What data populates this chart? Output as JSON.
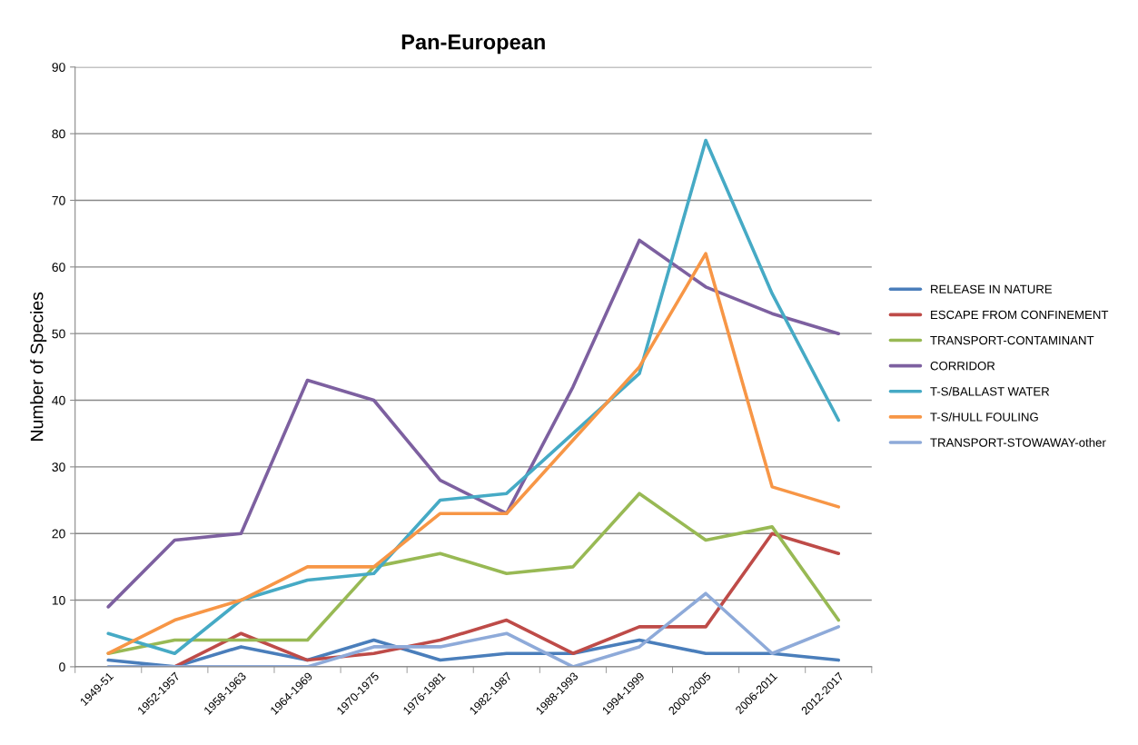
{
  "chart_data": {
    "type": "line",
    "title": "Pan-European",
    "ylabel": "Number of Species",
    "categories": [
      "1949-51",
      "1952-1957",
      "1958-1963",
      "1964-1969",
      "1970-1975",
      "1976-1981",
      "1982-1987",
      "1988-1993",
      "1994-1999",
      "2000-2005",
      "2006-2011",
      "2012-2017"
    ],
    "series": [
      {
        "name": "RELEASE IN NATURE",
        "color": "#4a7ebb",
        "values": [
          1,
          0,
          3,
          1,
          4,
          1,
          2,
          2,
          4,
          2,
          2,
          1
        ]
      },
      {
        "name": "ESCAPE FROM CONFINEMENT",
        "color": "#be4b48",
        "values": [
          null,
          0,
          5,
          1,
          2,
          4,
          7,
          2,
          6,
          6,
          20,
          17
        ]
      },
      {
        "name": "TRANSPORT-CONTAMINANT",
        "color": "#98b954",
        "values": [
          2,
          4,
          4,
          4,
          15,
          17,
          14,
          15,
          26,
          19,
          21,
          7
        ]
      },
      {
        "name": "CORRIDOR",
        "color": "#7d60a0",
        "values": [
          9,
          19,
          20,
          43,
          40,
          28,
          23,
          42,
          64,
          57,
          53,
          50
        ]
      },
      {
        "name": "T-S/BALLAST WATER",
        "color": "#46aac5",
        "values": [
          5,
          2,
          10,
          13,
          14,
          25,
          26,
          35,
          44,
          79,
          56,
          37
        ]
      },
      {
        "name": "T-S/HULL FOULING",
        "color": "#f79646",
        "values": [
          2,
          7,
          10,
          15,
          15,
          23,
          23,
          34,
          45,
          62,
          27,
          24
        ]
      },
      {
        "name": "TRANSPORT-STOWAWAY-other",
        "color": "#8eaad9",
        "values": [
          0,
          0,
          0,
          0,
          3,
          3,
          5,
          0,
          3,
          11,
          2,
          6
        ]
      }
    ],
    "ylim": [
      0,
      90
    ],
    "yticks": [
      0,
      10,
      20,
      30,
      40,
      50,
      60,
      70,
      80,
      90
    ],
    "grid": "y",
    "legend": "right",
    "marker": "none",
    "line_style": "solid"
  }
}
